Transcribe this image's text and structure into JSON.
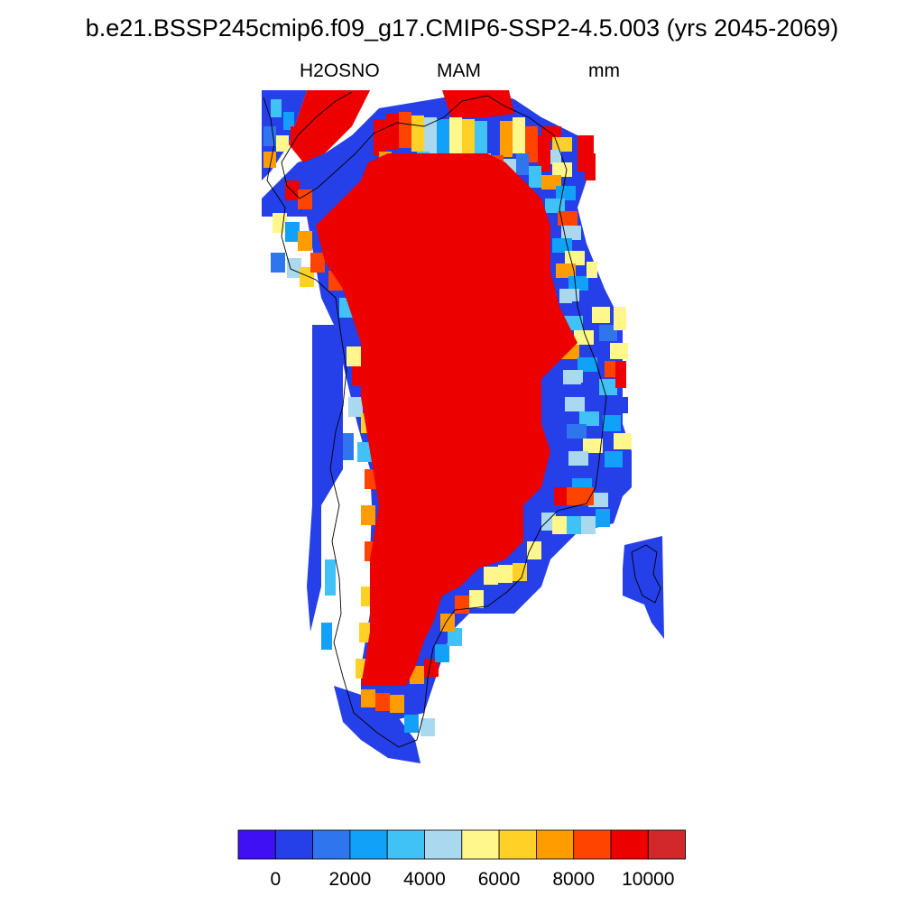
{
  "title": "b.e21.BSSP245cmip6.f09_g17.CMIP6-SSP2-4.5.003 (yrs 2045-2069)",
  "subtitle": {
    "variable": "H2OSNO",
    "season": "MAM",
    "units": "mm"
  },
  "colorbar": {
    "colors": [
      "#4010f4",
      "#2540e8",
      "#2f75ee",
      "#11a1f8",
      "#40c2f7",
      "#a9d8ef",
      "#fff68c",
      "#ffd026",
      "#ff9d00",
      "#ff4400",
      "#ec0000",
      "#d2282c"
    ],
    "tick_labels": [
      "0",
      "2000",
      "4000",
      "6000",
      "8000",
      "10000"
    ]
  },
  "chart_data": {
    "type": "heatmap",
    "region": "Greenland",
    "variable": "H2OSNO",
    "season": "MAM",
    "units": "mm",
    "levels": [
      0,
      1000,
      2000,
      3000,
      4000,
      5000,
      6000,
      7000,
      8000,
      9000,
      10000
    ],
    "interior_value": "above 10000 (red)",
    "margin_values": "mostly 0-3000 on west and south coasts, 4000-9000 in the northern and eastern margins"
  }
}
